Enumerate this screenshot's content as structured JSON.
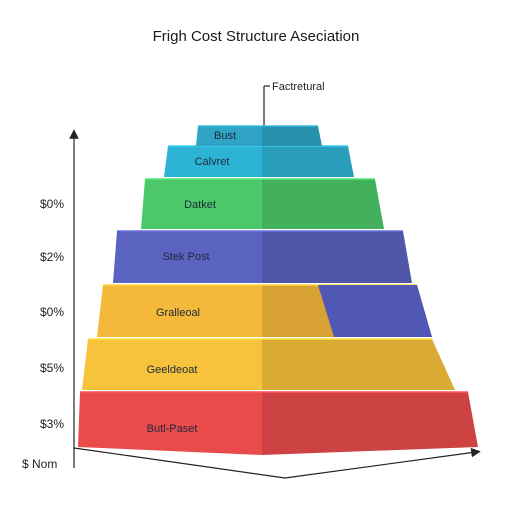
{
  "title": "Frigh Cost Structure Aseciation",
  "top_label": "Factretural",
  "axis_origin_label": "$ Nom",
  "y_labels": [
    "$0%",
    "$2%",
    "$0%",
    "$5%",
    "$3%"
  ],
  "tiers": [
    {
      "label": "Bust",
      "color": "#2fa4c4"
    },
    {
      "label": "Calvret",
      "color": "#2db4d4"
    },
    {
      "label": "Datket",
      "color": "#4cc86a"
    },
    {
      "label": "Stek Post",
      "color": "#5b63c0"
    },
    {
      "label": "Gralleoal",
      "color": "#f4b83a"
    },
    {
      "label": "Geeldeoat",
      "color": "#f7c23c"
    },
    {
      "label": "Butl-Paset",
      "color": "#e94b4b"
    }
  ],
  "side_block_color": "#5157b5"
}
